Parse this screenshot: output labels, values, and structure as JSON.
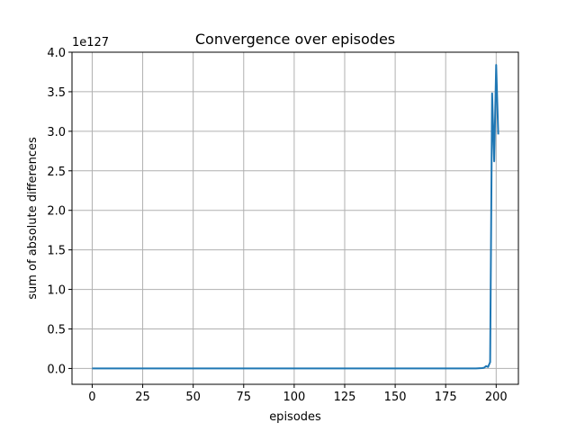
{
  "chart_data": {
    "type": "line",
    "title": "Convergence over episodes",
    "xlabel": "episodes",
    "ylabel": "sum of absolute differences",
    "offset_text": "1e127",
    "xlim": [
      -10,
      211
    ],
    "ylim": [
      -0.2,
      4.0
    ],
    "x_ticks": [
      0,
      25,
      50,
      75,
      100,
      125,
      150,
      175,
      200
    ],
    "x_tick_labels": [
      "0",
      "25",
      "50",
      "75",
      "100",
      "125",
      "150",
      "175",
      "200"
    ],
    "y_ticks": [
      0.0,
      0.5,
      1.0,
      1.5,
      2.0,
      2.5,
      3.0,
      3.5,
      4.0
    ],
    "y_tick_labels": [
      "0.0",
      "0.5",
      "1.0",
      "1.5",
      "2.0",
      "2.5",
      "3.0",
      "3.5",
      "4.0"
    ],
    "grid": true,
    "color": "#1f77b4",
    "series": [
      {
        "x": [
          0,
          25,
          50,
          75,
          100,
          125,
          150,
          175,
          190,
          193,
          194,
          195,
          196,
          197,
          198,
          199,
          200,
          201
        ],
        "y": [
          0,
          0,
          0,
          0,
          0,
          0,
          0,
          0,
          0,
          0.005,
          0.01,
          0.03,
          0.02,
          0.08,
          3.48,
          2.62,
          3.84,
          2.96
        ]
      }
    ]
  }
}
